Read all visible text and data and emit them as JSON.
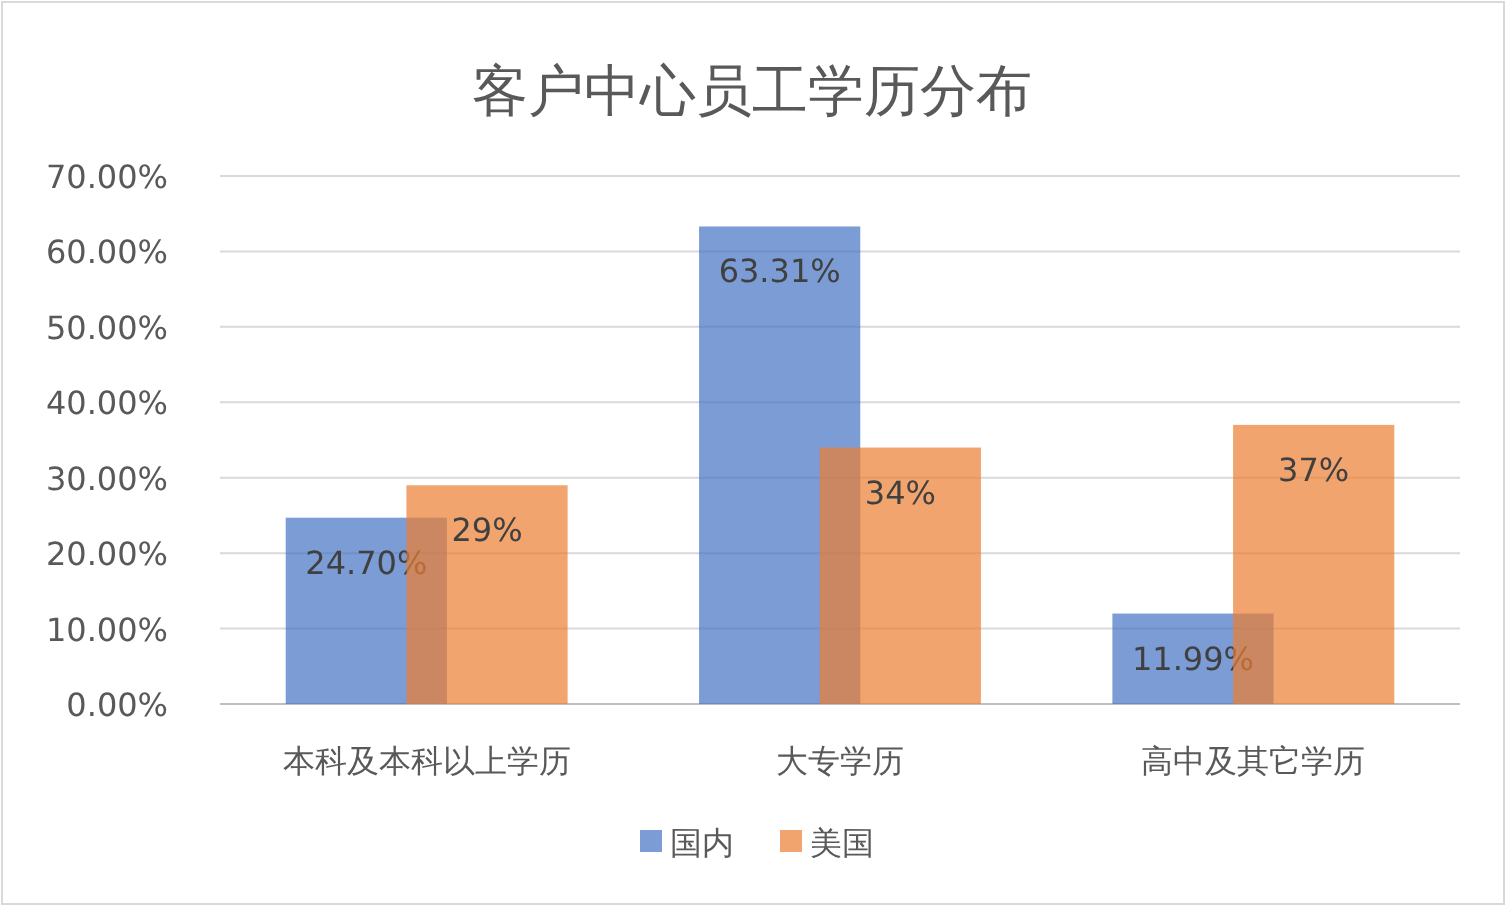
{
  "chart_data": {
    "type": "bar",
    "title": "客户中心员工学历分布",
    "categories": [
      "本科及本科以上学历",
      "大专学历",
      "高中及其它学历"
    ],
    "series": [
      {
        "name": "国内",
        "color": "#4472c4",
        "values": [
          24.7,
          63.31,
          11.99
        ],
        "value_labels": [
          "24.70%",
          "63.31%",
          "11.99%"
        ]
      },
      {
        "name": "美国",
        "color": "#ed7d31",
        "values": [
          29,
          34,
          37
        ],
        "value_labels": [
          "29%",
          "34%",
          "37%"
        ]
      }
    ],
    "ylim": [
      0,
      70
    ],
    "yticks": [
      {
        "value": 0,
        "label": "0.00%"
      },
      {
        "value": 10,
        "label": "10.00%"
      },
      {
        "value": 20,
        "label": "20.00%"
      },
      {
        "value": 30,
        "label": "30.00%"
      },
      {
        "value": 40,
        "label": "40.00%"
      },
      {
        "value": 50,
        "label": "50.00%"
      },
      {
        "value": 60,
        "label": "60.00%"
      },
      {
        "value": 70,
        "label": "70.00%"
      }
    ],
    "grid": "y",
    "legend": "bottom"
  }
}
